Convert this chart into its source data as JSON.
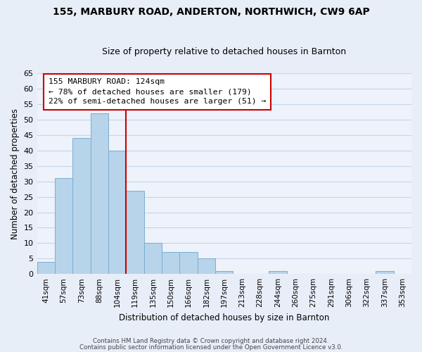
{
  "title": "155, MARBURY ROAD, ANDERTON, NORTHWICH, CW9 6AP",
  "subtitle": "Size of property relative to detached houses in Barnton",
  "xlabel": "Distribution of detached houses by size in Barnton",
  "ylabel": "Number of detached properties",
  "bin_labels": [
    "41sqm",
    "57sqm",
    "73sqm",
    "88sqm",
    "104sqm",
    "119sqm",
    "135sqm",
    "150sqm",
    "166sqm",
    "182sqm",
    "197sqm",
    "213sqm",
    "228sqm",
    "244sqm",
    "260sqm",
    "275sqm",
    "291sqm",
    "306sqm",
    "322sqm",
    "337sqm",
    "353sqm"
  ],
  "bar_values": [
    4,
    31,
    44,
    52,
    40,
    27,
    10,
    7,
    7,
    5,
    1,
    0,
    0,
    1,
    0,
    0,
    0,
    0,
    0,
    1,
    0
  ],
  "bar_color": "#b8d4ea",
  "bar_edge_color": "#7aaed0",
  "vline_x_index": 5,
  "vline_color": "#cc0000",
  "ylim": [
    0,
    65
  ],
  "yticks": [
    0,
    5,
    10,
    15,
    20,
    25,
    30,
    35,
    40,
    45,
    50,
    55,
    60,
    65
  ],
  "annotation_title": "155 MARBURY ROAD: 124sqm",
  "annotation_line1": "← 78% of detached houses are smaller (179)",
  "annotation_line2": "22% of semi-detached houses are larger (51) →",
  "annotation_box_color": "#ffffff",
  "annotation_box_edge": "#cc0000",
  "footer_line1": "Contains HM Land Registry data © Crown copyright and database right 2024.",
  "footer_line2": "Contains public sector information licensed under the Open Government Licence v3.0.",
  "background_color": "#e8eef8",
  "plot_bg_color": "#eef2fa",
  "grid_color": "#c5d5e8"
}
